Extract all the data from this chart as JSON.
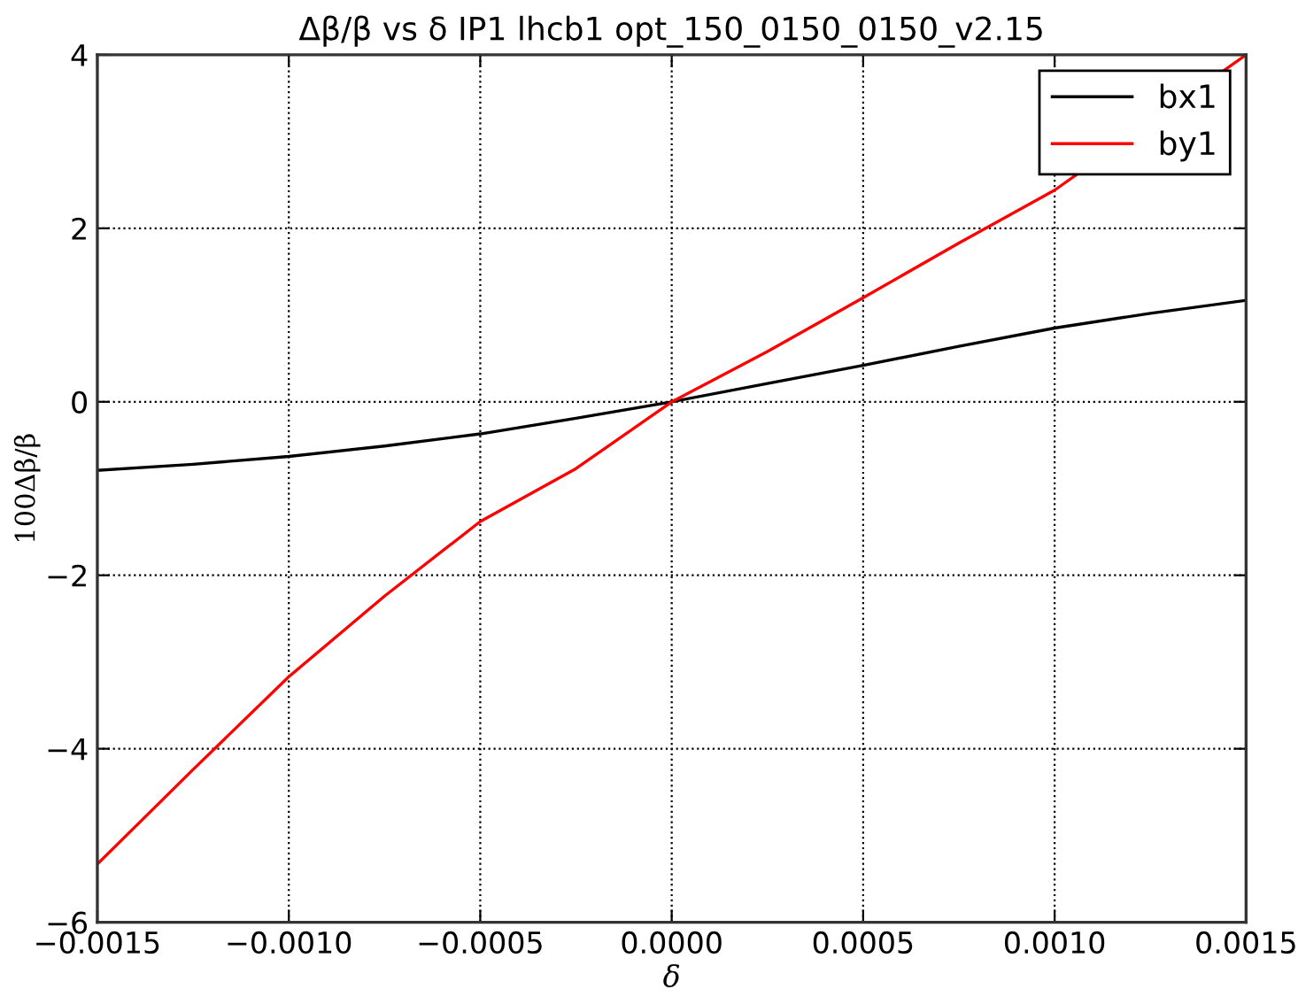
{
  "chart_data": {
    "type": "line",
    "title": "Δβ/β vs δ IP1 lhcb1 opt_150_0150_0150_v2.15",
    "xlabel": "δ",
    "ylabel": "100Δβ/β",
    "x": [
      -0.0015,
      -0.00125,
      -0.001,
      -0.00075,
      -0.0005,
      -0.00025,
      0,
      0.00025,
      0.0005,
      0.00075,
      0.001,
      0.00125,
      0.0015
    ],
    "series": [
      {
        "name": "bx1",
        "color": "#000000",
        "values": [
          -0.79,
          -0.72,
          -0.63,
          -0.51,
          -0.37,
          -0.19,
          0,
          0.21,
          0.42,
          0.64,
          0.85,
          1.02,
          1.17
        ]
      },
      {
        "name": "by1",
        "color": "#ff0000",
        "x": [
          -0.0015,
          -0.00125,
          -0.001,
          -0.00075,
          -0.0005,
          -0.00025,
          0,
          0.00025,
          0.0005,
          0.00075,
          0.001,
          0.0015
        ],
        "values": [
          -5.33,
          -4.24,
          -3.17,
          -2.24,
          -1.38,
          -0.77,
          0,
          0.58,
          1.2,
          1.83,
          2.44,
          4.0
        ]
      }
    ],
    "xlim": [
      -0.0015,
      0.0015
    ],
    "xticks": [
      {
        "value": -0.0015,
        "label": "−0.0015"
      },
      {
        "value": -0.001,
        "label": "−0.0010"
      },
      {
        "value": -0.0005,
        "label": "−0.0005"
      },
      {
        "value": 0,
        "label": "0.0000"
      },
      {
        "value": 0.0005,
        "label": "0.0005"
      },
      {
        "value": 0.001,
        "label": "0.0010"
      },
      {
        "value": 0.0015,
        "label": "0.0015"
      }
    ],
    "ylim": [
      -6,
      4
    ],
    "yticks": [
      {
        "value": -6,
        "label": "−6"
      },
      {
        "value": -4,
        "label": "−4"
      },
      {
        "value": -2,
        "label": "−2"
      },
      0,
      2,
      4
    ],
    "grid": true,
    "legend": "top right",
    "marker": "none",
    "line_style": "solid"
  }
}
